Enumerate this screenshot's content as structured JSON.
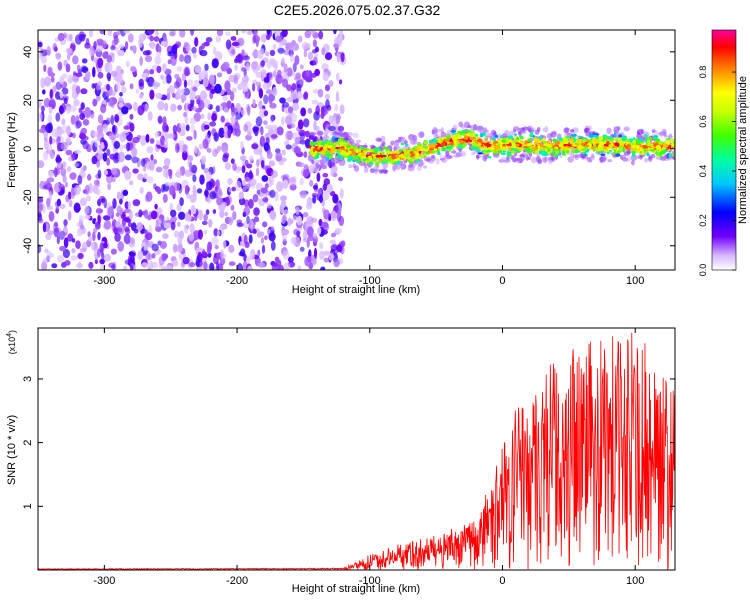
{
  "title": "C2E5.2026.075.02.37.G32",
  "chart_data": [
    {
      "type": "heatmap",
      "name": "spectrogram",
      "xlabel": "Height of straight line (km)",
      "ylabel": "Frequency (Hz)",
      "xlim": [
        -350,
        130
      ],
      "ylim": [
        -50,
        49
      ],
      "xticks": [
        -300,
        -200,
        -100,
        0,
        100
      ],
      "yticks": [
        -40,
        -20,
        0,
        20,
        40
      ],
      "noise_region": {
        "x_from": -350,
        "x_to": -120,
        "dominant_color": "violet",
        "description_level": "low amplitude"
      },
      "signal_band": {
        "x_from": -145,
        "x_to": 130,
        "center_frequency": [
          {
            "x": -145,
            "y": 0
          },
          {
            "x": -120,
            "y": 0
          },
          {
            "x": -100,
            "y": -3
          },
          {
            "x": -80,
            "y": -3
          },
          {
            "x": -60,
            "y": -1
          },
          {
            "x": -40,
            "y": 3
          },
          {
            "x": -25,
            "y": 4
          },
          {
            "x": -10,
            "y": 1
          },
          {
            "x": 10,
            "y": 2
          },
          {
            "x": 40,
            "y": 1
          },
          {
            "x": 70,
            "y": 2
          },
          {
            "x": 100,
            "y": 1
          },
          {
            "x": 130,
            "y": 1
          }
        ],
        "peak_amplitude": 0.95
      },
      "colorbar": {
        "label": "Normalized spectral amplitude",
        "range": [
          0,
          0.97
        ],
        "ticks": [
          "0.0",
          "0.2",
          "0.4",
          "0.6",
          "0.8"
        ],
        "tick_values": [
          0.0,
          0.2,
          0.4,
          0.6,
          0.8
        ]
      }
    },
    {
      "type": "line",
      "name": "snr",
      "xlabel": "Height of straight line (km)",
      "ylabel": "SNR (10 * v/v)",
      "multiplier": "(x10",
      "multiplier_exp": "4",
      "multiplier_close": ")",
      "xlim": [
        -350,
        130
      ],
      "ylim": [
        0,
        3.8
      ],
      "xticks": [
        -300,
        -200,
        -100,
        0,
        100
      ],
      "yticks": [
        1,
        2,
        3
      ],
      "color": "#ff0000",
      "envelope": [
        {
          "x": -350,
          "y": 0.02
        },
        {
          "x": -120,
          "y": 0.03
        },
        {
          "x": -105,
          "y": 0.2
        },
        {
          "x": -80,
          "y": 0.4
        },
        {
          "x": -50,
          "y": 0.55
        },
        {
          "x": -20,
          "y": 0.8
        },
        {
          "x": -5,
          "y": 1.6
        },
        {
          "x": 10,
          "y": 2.6
        },
        {
          "x": 30,
          "y": 3.2
        },
        {
          "x": 60,
          "y": 3.6
        },
        {
          "x": 100,
          "y": 3.8
        },
        {
          "x": 130,
          "y": 3.0
        }
      ]
    }
  ]
}
